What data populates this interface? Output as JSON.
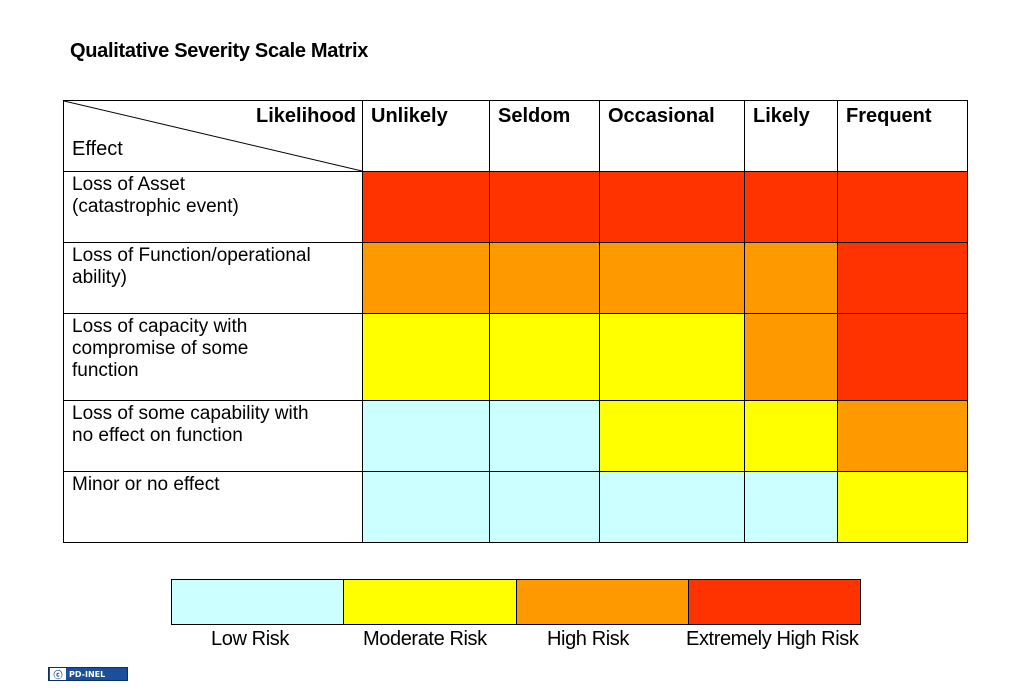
{
  "title": "Qualitative Severity Scale Matrix",
  "chart_data": {
    "type": "heatmap",
    "title": "Qualitative Severity Scale Matrix",
    "corner_top_label": "Likelihood",
    "corner_bottom_label": "Effect",
    "columns": [
      "Unlikely",
      "Seldom",
      "Occasional",
      "Likely",
      "Frequent"
    ],
    "rows": [
      "Loss of Asset (catastrophic event)",
      "Loss of Function/operational ability)",
      "Loss of capacity with compromise of some function",
      "Loss of some capability with no effect on function",
      "Minor or no effect"
    ],
    "row_lines": [
      [
        "Loss of Asset",
        "(catastrophic event)"
      ],
      [
        "Loss of Function/operational",
        "ability)"
      ],
      [
        "Loss of capacity with",
        "compromise of some",
        "function"
      ],
      [
        "Loss of some capability with",
        "no effect on function"
      ],
      [
        "Minor or no effect"
      ]
    ],
    "levels": [
      "Low Risk",
      "Moderate Risk",
      "High Risk",
      "Extremely High Risk"
    ],
    "level_colors": [
      "#ccffff",
      "#ffff00",
      "#ff9900",
      "#ff3300"
    ],
    "values": [
      [
        3,
        3,
        3,
        3,
        3
      ],
      [
        2,
        2,
        2,
        2,
        3
      ],
      [
        1,
        1,
        1,
        2,
        3
      ],
      [
        0,
        0,
        1,
        1,
        2
      ],
      [
        0,
        0,
        0,
        0,
        1
      ]
    ]
  },
  "badge": {
    "icon": "cc-icon",
    "label": "PD-INEL"
  }
}
